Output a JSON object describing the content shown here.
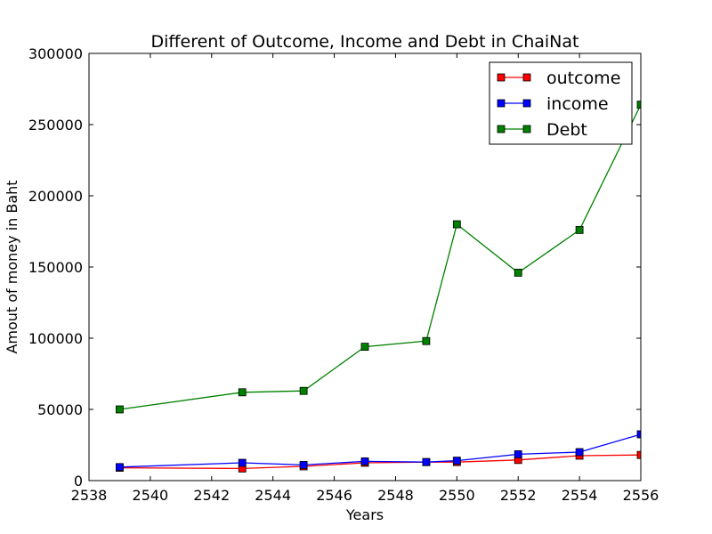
{
  "chart_data": {
    "type": "line",
    "title": "Different of Outcome, Income and Debt in ChaiNat",
    "xlabel": "Years",
    "ylabel": "Amout of money in Baht",
    "xlim": [
      2538,
      2556
    ],
    "ylim": [
      0,
      300000
    ],
    "xticks": [
      "2538",
      "2540",
      "2542",
      "2544",
      "2546",
      "2548",
      "2550",
      "2552",
      "2554",
      "2556"
    ],
    "yticks": [
      "0",
      "50000",
      "100000",
      "150000",
      "200000",
      "250000",
      "300000"
    ],
    "grid": false,
    "legend_position": "top-right",
    "x": [
      2539,
      2543,
      2545,
      2547,
      2549,
      2550,
      2552,
      2554,
      2556
    ],
    "series": [
      {
        "name": "outcome",
        "color": "#ff0000",
        "marker": "square",
        "values": [
          9000,
          8500,
          10000,
          12500,
          13000,
          13000,
          14500,
          17500,
          18000
        ]
      },
      {
        "name": "income",
        "color": "#0000ff",
        "marker": "square",
        "values": [
          9500,
          12500,
          11000,
          13500,
          13000,
          14000,
          18500,
          20000,
          32500
        ]
      },
      {
        "name": "Debt",
        "color": "#008000",
        "marker": "square",
        "values": [
          50000,
          62000,
          63000,
          94000,
          98000,
          180000,
          146000,
          176000,
          264000
        ]
      }
    ]
  }
}
